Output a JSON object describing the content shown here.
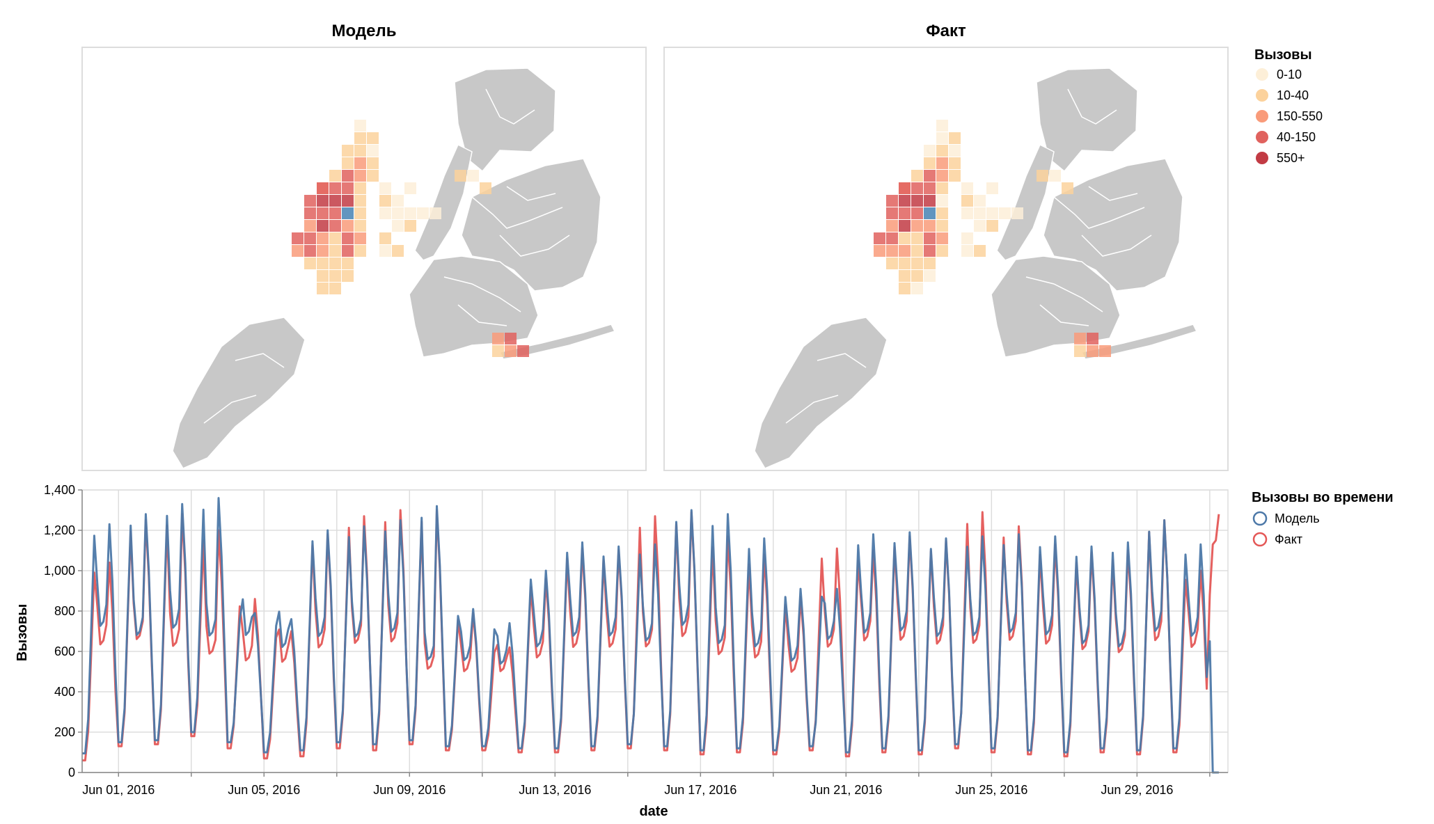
{
  "maps": {
    "model_title": "Модель",
    "fact_title": "Факт",
    "land_color": "#c8c8c8",
    "highlight_color": "#4682b4",
    "legend": {
      "title": "Вызовы",
      "items": [
        {
          "label": "0-10",
          "color": "#fdefd8"
        },
        {
          "label": "10-40",
          "color": "#fcd29c"
        },
        {
          "label": "150-550",
          "color": "#f99b7a"
        },
        {
          "label": "40-150",
          "color": "#e0625e"
        },
        {
          "label": "550+",
          "color": "#c23b44"
        }
      ]
    }
  },
  "chart_data": {
    "type": "line",
    "title": "",
    "xlabel": "date",
    "ylabel": "Вызовы",
    "ylim": [
      0,
      1400
    ],
    "xlim": [
      "2016-05-31T00:00",
      "2016-07-01T12:00"
    ],
    "yticks": [
      "0",
      "200",
      "400",
      "600",
      "800",
      "1,000",
      "1,200",
      "1,400"
    ],
    "xticks": [
      "Jun 01, 2016",
      "Jun 05, 2016",
      "Jun 09, 2016",
      "Jun 13, 2016",
      "Jun 17, 2016",
      "Jun 21, 2016",
      "Jun 25, 2016",
      "Jun 29, 2016"
    ],
    "grid": true,
    "legend": {
      "title": "Вызовы во времени",
      "position": "right"
    },
    "sampling_hours": 2,
    "start": "2016-05-31T00:00",
    "series": [
      {
        "name": "Модель",
        "color": "#4c78a8",
        "daily_peaks": [
          1230,
          1280,
          1330,
          1360,
          790,
          760,
          1200,
          1220,
          1250,
          1320,
          810,
          740,
          1000,
          1140,
          1120,
          1130,
          1300,
          1280,
          1160,
          910,
          910,
          1180,
          1190,
          1160,
          1170,
          1180,
          1170,
          1120,
          1140,
          1250,
          1130
        ],
        "midday": [
          820,
          760,
          800,
          750,
          760,
          700,
          760,
          750,
          780,
          620,
          620,
          600,
          700,
          760,
          760,
          730,
          820,
          720,
          700,
          620,
          740,
          780,
          790,
          760,
          760,
          780,
          770,
          720,
          700,
          790,
          760
        ],
        "troughs": [
          95,
          150,
          160,
          200,
          150,
          100,
          110,
          150,
          140,
          160,
          130,
          130,
          120,
          120,
          130,
          140,
          130,
          110,
          120,
          110,
          130,
          100,
          120,
          110,
          140,
          120,
          110,
          100,
          120,
          110,
          120
        ],
        "tail": [
          650,
          0,
          0,
          0
        ]
      },
      {
        "name": "Факт",
        "color": "#e45756",
        "daily_peaks": [
          1040,
          1250,
          1280,
          1200,
          860,
          700,
          1180,
          1270,
          1300,
          1300,
          790,
          620,
          960,
          1110,
          1100,
          1270,
          1290,
          1170,
          1080,
          870,
          1110,
          1100,
          1170,
          1150,
          1290,
          1220,
          1130,
          1090,
          1100,
          1250,
          1000
        ],
        "midday": [
          720,
          740,
          700,
          650,
          620,
          620,
          700,
          720,
          730,
          570,
          560,
          560,
          640,
          700,
          700,
          700,
          760,
          660,
          640,
          560,
          700,
          740,
          740,
          720,
          720,
          740,
          720,
          690,
          670,
          740,
          700
        ],
        "troughs": [
          60,
          130,
          140,
          180,
          120,
          70,
          80,
          120,
          110,
          140,
          110,
          110,
          100,
          100,
          110,
          120,
          110,
          90,
          100,
          90,
          110,
          80,
          100,
          90,
          120,
          100,
          90,
          80,
          100,
          90,
          100
        ],
        "tail": [
          880,
          1130,
          1150,
          1280
        ]
      }
    ]
  }
}
